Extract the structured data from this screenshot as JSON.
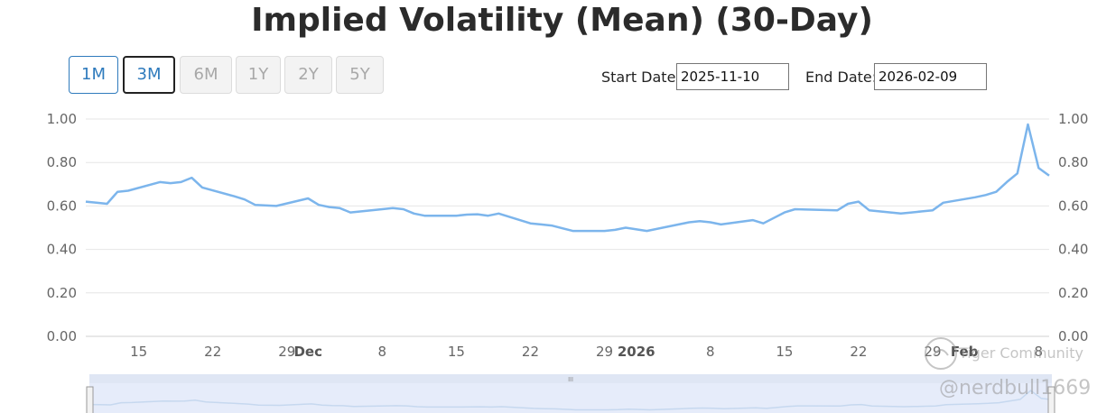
{
  "chart_data": {
    "type": "line",
    "title": "Implied Volatility (Mean) (30-Day)",
    "xlabel": "",
    "ylabel": "",
    "ylim": [
      0,
      1
    ],
    "y_ticks": [
      "0.00",
      "0.20",
      "0.40",
      "0.60",
      "0.80",
      "1.00"
    ],
    "x_ticks": [
      {
        "label": "15",
        "date": "2025-11-15",
        "bold": false
      },
      {
        "label": "22",
        "date": "2025-11-22",
        "bold": false
      },
      {
        "label": "29",
        "date": "2025-11-29",
        "bold": false
      },
      {
        "label": "Dec",
        "date": "2025-12-01",
        "bold": true
      },
      {
        "label": "8",
        "date": "2025-12-08",
        "bold": false
      },
      {
        "label": "15",
        "date": "2025-12-15",
        "bold": false
      },
      {
        "label": "22",
        "date": "2025-12-22",
        "bold": false
      },
      {
        "label": "29",
        "date": "2025-12-29",
        "bold": false
      },
      {
        "label": "2026",
        "date": "2026-01-01",
        "bold": true
      },
      {
        "label": "8",
        "date": "2026-01-08",
        "bold": false
      },
      {
        "label": "15",
        "date": "2026-01-15",
        "bold": false
      },
      {
        "label": "22",
        "date": "2026-01-22",
        "bold": false
      },
      {
        "label": "29",
        "date": "2026-01-29",
        "bold": false
      },
      {
        "label": "Feb",
        "date": "2026-02-01",
        "bold": true
      },
      {
        "label": "8",
        "date": "2026-02-08",
        "bold": false
      }
    ],
    "grid": true,
    "series": [
      {
        "color": "#7cb5ec",
        "points": [
          [
            "2025-11-10",
            0.62
          ],
          [
            "2025-11-11",
            0.615
          ],
          [
            "2025-11-12",
            0.61
          ],
          [
            "2025-11-13",
            0.665
          ],
          [
            "2025-11-14",
            0.67
          ],
          [
            "2025-11-17",
            0.71
          ],
          [
            "2025-11-18",
            0.705
          ],
          [
            "2025-11-19",
            0.71
          ],
          [
            "2025-11-20",
            0.73
          ],
          [
            "2025-11-21",
            0.685
          ],
          [
            "2025-11-24",
            0.645
          ],
          [
            "2025-11-25",
            0.63
          ],
          [
            "2025-11-26",
            0.605
          ],
          [
            "2025-11-28",
            0.6
          ],
          [
            "2025-12-01",
            0.635
          ],
          [
            "2025-12-02",
            0.605
          ],
          [
            "2025-12-03",
            0.595
          ],
          [
            "2025-12-04",
            0.59
          ],
          [
            "2025-12-05",
            0.57
          ],
          [
            "2025-12-08",
            0.585
          ],
          [
            "2025-12-09",
            0.59
          ],
          [
            "2025-12-10",
            0.585
          ],
          [
            "2025-12-11",
            0.565
          ],
          [
            "2025-12-12",
            0.555
          ],
          [
            "2025-12-15",
            0.555
          ],
          [
            "2025-12-16",
            0.56
          ],
          [
            "2025-12-17",
            0.562
          ],
          [
            "2025-12-18",
            0.555
          ],
          [
            "2025-12-19",
            0.565
          ],
          [
            "2025-12-22",
            0.52
          ],
          [
            "2025-12-23",
            0.515
          ],
          [
            "2025-12-24",
            0.51
          ],
          [
            "2025-12-26",
            0.485
          ],
          [
            "2025-12-29",
            0.485
          ],
          [
            "2025-12-30",
            0.49
          ],
          [
            "2025-12-31",
            0.5
          ],
          [
            "2026-01-02",
            0.485
          ],
          [
            "2026-01-05",
            0.515
          ],
          [
            "2026-01-06",
            0.525
          ],
          [
            "2026-01-07",
            0.53
          ],
          [
            "2026-01-08",
            0.525
          ],
          [
            "2026-01-09",
            0.515
          ],
          [
            "2026-01-12",
            0.535
          ],
          [
            "2026-01-13",
            0.52
          ],
          [
            "2026-01-14",
            0.545
          ],
          [
            "2026-01-15",
            0.57
          ],
          [
            "2026-01-16",
            0.585
          ],
          [
            "2026-01-20",
            0.58
          ],
          [
            "2026-01-21",
            0.61
          ],
          [
            "2026-01-22",
            0.62
          ],
          [
            "2026-01-23",
            0.58
          ],
          [
            "2026-01-26",
            0.565
          ],
          [
            "2026-01-27",
            0.57
          ],
          [
            "2026-01-28",
            0.575
          ],
          [
            "2026-01-29",
            0.58
          ],
          [
            "2026-01-30",
            0.615
          ],
          [
            "2026-02-02",
            0.64
          ],
          [
            "2026-02-03",
            0.65
          ],
          [
            "2026-02-04",
            0.665
          ],
          [
            "2026-02-05",
            0.71
          ],
          [
            "2026-02-06",
            0.75
          ],
          [
            "2026-02-07",
            0.975
          ],
          [
            "2026-02-08",
            0.775
          ],
          [
            "2026-02-09",
            0.74
          ]
        ]
      }
    ]
  },
  "range_buttons": [
    {
      "label": "1M",
      "state": "active"
    },
    {
      "label": "3M",
      "state": "current"
    },
    {
      "label": "6M",
      "state": "disabled"
    },
    {
      "label": "1Y",
      "state": "disabled"
    },
    {
      "label": "2Y",
      "state": "disabled"
    },
    {
      "label": "5Y",
      "state": "disabled"
    }
  ],
  "date_range": {
    "start_label": "Start Date:",
    "start_value": "2025-11-10",
    "end_label": "End Date:",
    "end_value": "2026-02-09"
  },
  "navigator": {
    "handle_glyph": "III"
  },
  "watermark": {
    "brand": "Tiger Community",
    "user": "@nerdbull1669"
  },
  "colors": {
    "line": "#7cb5ec",
    "accent": "#2f7bbd",
    "grid": "#e6e6e6",
    "navigator_fill": "#e6ecfa"
  }
}
